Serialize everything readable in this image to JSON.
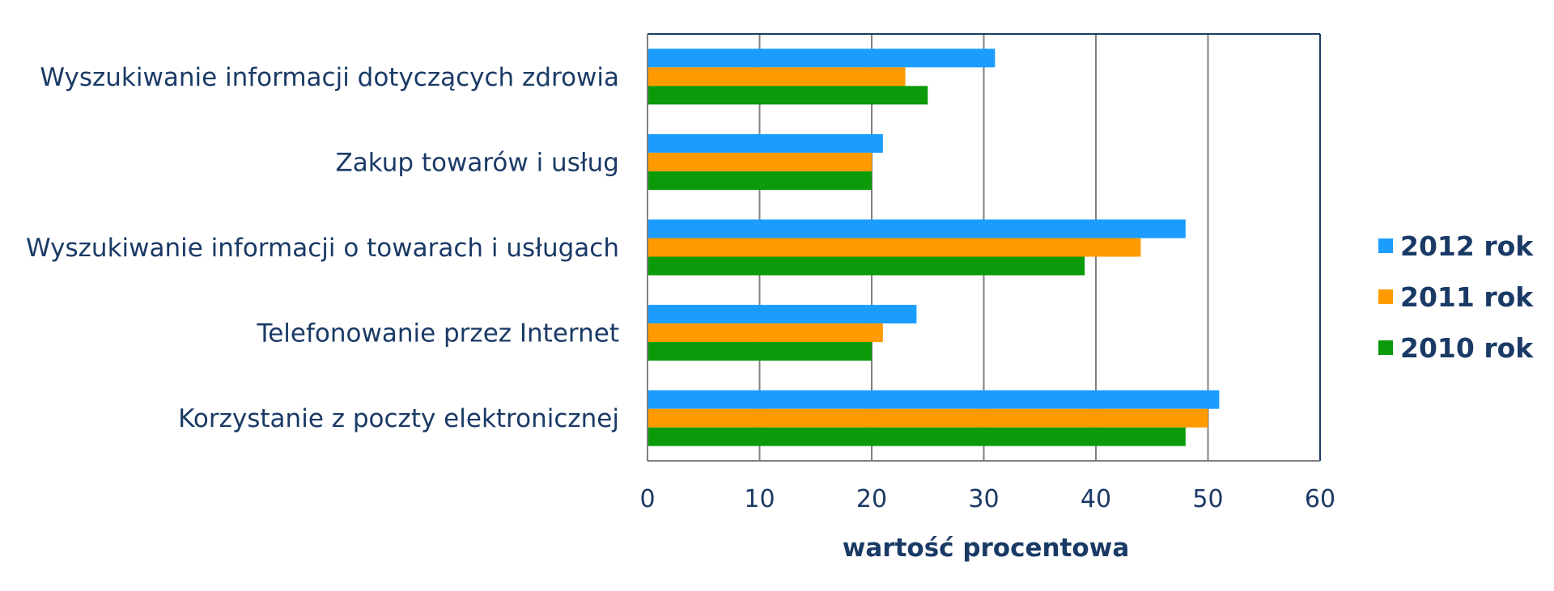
{
  "chart_data": {
    "type": "bar",
    "orientation": "horizontal",
    "categories": [
      "Wyszukiwanie informacji dotyczących zdrowia",
      "Zakup towarów i usług",
      "Wyszukiwanie informacji o towarach i usługach",
      "Telefonowanie przez Internet",
      "Korzystanie z poczty elektronicznej"
    ],
    "series": [
      {
        "name": "2012 rok",
        "color": "#1b9cff",
        "values": [
          31,
          21,
          48,
          24,
          51
        ]
      },
      {
        "name": "2011 rok",
        "color": "#ff9a00",
        "values": [
          23,
          20,
          44,
          21,
          50
        ]
      },
      {
        "name": "2010 rok",
        "color": "#0a9a0a",
        "values": [
          25,
          20,
          39,
          20,
          48
        ]
      }
    ],
    "xlabel": "wartość procentowa",
    "xlim": [
      0,
      60
    ],
    "xticks": [
      "0",
      "10",
      "20",
      "30",
      "40",
      "50",
      "60"
    ],
    "grid": "vertical",
    "legend_position": "right",
    "colors": {
      "text": "#1a3a66",
      "frame": "#1a3a66",
      "grid": "#808080"
    }
  }
}
